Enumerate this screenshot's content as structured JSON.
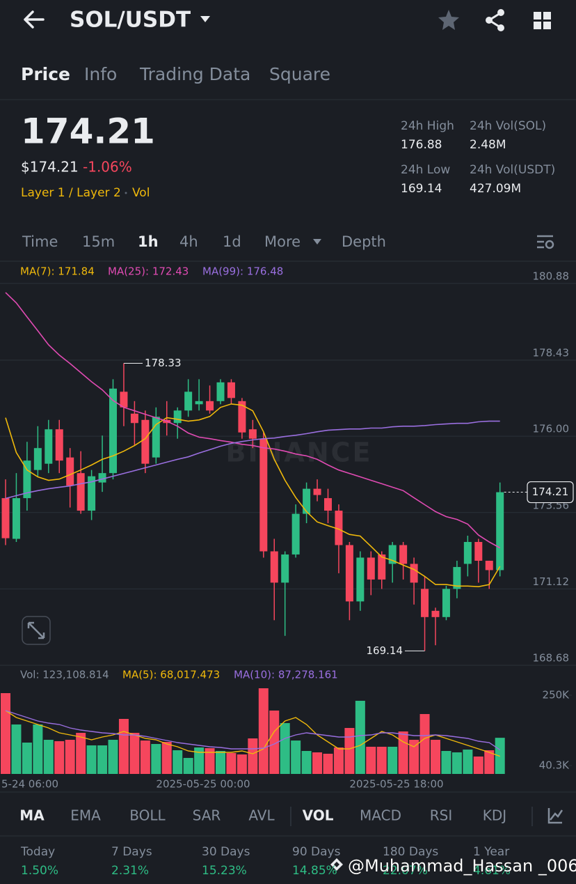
{
  "header": {
    "pair": "SOL/USDT"
  },
  "tabs": [
    "Price",
    "Info",
    "Trading Data",
    "Square"
  ],
  "price": {
    "last": "174.21",
    "fiat": "$174.21",
    "change": "-1.06%",
    "tags": [
      "Layer 1 / Layer 2",
      "Vol"
    ]
  },
  "stats": [
    {
      "label": "24h High",
      "value": "176.88"
    },
    {
      "label": "24h Vol(SOL)",
      "value": "2.48M"
    },
    {
      "label": "24h Low",
      "value": "169.14"
    },
    {
      "label": "24h Vol(USDT)",
      "value": "427.09M"
    }
  ],
  "intervals": [
    "Time",
    "15m",
    "1h",
    "4h",
    "1d",
    "More",
    "Depth"
  ],
  "chart_data": {
    "type": "candlestick",
    "watermark": "BINANCE",
    "ylim": [
      168.68,
      181.59
    ],
    "yticks": [
      168.68,
      171.12,
      173.56,
      {
        "value": 176,
        "label": "176.00"
      },
      178.43,
      180.88
    ],
    "up_color": "#2ebd85",
    "down_color": "#f6465d",
    "candles": [
      {
        "open": 174.02,
        "high": 174.62,
        "low": 172.52,
        "close": 172.74
      },
      {
        "open": 172.72,
        "high": 174.82,
        "low": 172.62,
        "close": 174.02
      },
      {
        "open": 174.02,
        "high": 175.82,
        "low": 173.62,
        "close": 175.22
      },
      {
        "open": 174.92,
        "high": 176.32,
        "low": 174.72,
        "close": 175.62
      },
      {
        "open": 175.12,
        "high": 176.52,
        "low": 174.82,
        "close": 176.22
      },
      {
        "open": 176.22,
        "high": 176.52,
        "low": 174.82,
        "close": 175.22
      },
      {
        "open": 175.32,
        "high": 175.62,
        "low": 173.72,
        "close": 174.42
      },
      {
        "open": 174.82,
        "high": 175.52,
        "low": 173.52,
        "close": 173.62
      },
      {
        "open": 173.62,
        "high": 174.92,
        "low": 173.32,
        "close": 174.72
      },
      {
        "open": 174.52,
        "high": 176.02,
        "low": 174.22,
        "close": 174.82
      },
      {
        "open": 174.82,
        "high": 177.82,
        "low": 174.62,
        "close": 177.52
      },
      {
        "open": 177.42,
        "high": 178.33,
        "low": 176.32,
        "close": 176.92
      },
      {
        "open": 176.72,
        "high": 177.12,
        "low": 175.72,
        "close": 176.42
      },
      {
        "open": 176.52,
        "high": 176.82,
        "low": 174.82,
        "close": 175.12
      },
      {
        "open": 175.32,
        "high": 176.92,
        "low": 175.12,
        "close": 176.62
      },
      {
        "open": 176.52,
        "high": 177.12,
        "low": 176.02,
        "close": 176.42
      },
      {
        "open": 176.42,
        "high": 176.92,
        "low": 175.92,
        "close": 176.82
      },
      {
        "open": 176.82,
        "high": 177.82,
        "low": 176.62,
        "close": 177.42
      },
      {
        "open": 177.02,
        "high": 177.82,
        "low": 176.82,
        "close": 177.12
      },
      {
        "open": 177.12,
        "high": 177.62,
        "low": 176.72,
        "close": 176.82
      },
      {
        "open": 177.12,
        "high": 177.82,
        "low": 177.02,
        "close": 177.72
      },
      {
        "open": 177.72,
        "high": 177.82,
        "low": 177.02,
        "close": 177.22
      },
      {
        "open": 177.12,
        "high": 177.22,
        "low": 175.92,
        "close": 176.12
      },
      {
        "open": 176.22,
        "high": 176.52,
        "low": 175.62,
        "close": 175.92
      },
      {
        "open": 175.92,
        "high": 176.12,
        "low": 172.12,
        "close": 172.32
      },
      {
        "open": 172.32,
        "high": 172.72,
        "low": 170.12,
        "close": 171.32
      },
      {
        "open": 171.32,
        "high": 172.32,
        "low": 169.62,
        "close": 172.22
      },
      {
        "open": 172.22,
        "high": 173.82,
        "low": 172.12,
        "close": 173.52
      },
      {
        "open": 173.52,
        "high": 174.52,
        "low": 173.22,
        "close": 174.32
      },
      {
        "open": 174.32,
        "high": 174.62,
        "low": 173.92,
        "close": 174.12
      },
      {
        "open": 174.02,
        "high": 174.32,
        "low": 173.22,
        "close": 173.62
      },
      {
        "open": 173.62,
        "high": 173.82,
        "low": 171.62,
        "close": 172.52
      },
      {
        "open": 172.52,
        "high": 172.62,
        "low": 170.12,
        "close": 170.72
      },
      {
        "open": 170.72,
        "high": 172.32,
        "low": 170.42,
        "close": 172.12
      },
      {
        "open": 172.12,
        "high": 172.32,
        "low": 170.92,
        "close": 171.42
      },
      {
        "open": 172.22,
        "high": 172.32,
        "low": 171.12,
        "close": 171.42
      },
      {
        "open": 171.92,
        "high": 172.62,
        "low": 171.32,
        "close": 172.52
      },
      {
        "open": 172.52,
        "high": 172.62,
        "low": 171.42,
        "close": 171.92
      },
      {
        "open": 171.92,
        "high": 172.12,
        "low": 170.62,
        "close": 171.32
      },
      {
        "open": 171.12,
        "high": 171.52,
        "low": 169.14,
        "close": 170.22
      },
      {
        "open": 170.42,
        "high": 170.52,
        "low": 169.32,
        "close": 170.22
      },
      {
        "open": 170.22,
        "high": 171.22,
        "low": 170.12,
        "close": 171.12
      },
      {
        "open": 171.12,
        "high": 172.02,
        "low": 170.82,
        "close": 171.82
      },
      {
        "open": 171.92,
        "high": 172.82,
        "low": 171.52,
        "close": 172.62
      },
      {
        "open": 172.62,
        "high": 172.72,
        "low": 171.32,
        "close": 172.02
      },
      {
        "open": 172.02,
        "high": 172.02,
        "low": 171.12,
        "close": 171.72
      },
      {
        "open": 171.72,
        "high": 174.52,
        "low": 171.52,
        "close": 174.21
      }
    ],
    "ma_lines": [
      {
        "label": "MA(7): 171.84",
        "color": "#f0b90b",
        "values": [
          176.59,
          175.48,
          174.92,
          174.7,
          174.59,
          174.63,
          174.77,
          174.92,
          175.08,
          175.26,
          175.37,
          175.52,
          175.7,
          175.92,
          176.37,
          176.59,
          176.54,
          176.48,
          176.52,
          176.63,
          176.92,
          177.03,
          176.99,
          176.81,
          176.14,
          175.26,
          174.59,
          174.04,
          173.59,
          173.26,
          173.14,
          173.03,
          172.86,
          172.81,
          172.48,
          172.14,
          172.03,
          171.88,
          171.74,
          171.52,
          171.26,
          171.26,
          171.21,
          171.21,
          171.19,
          171.26,
          171.84
        ]
      },
      {
        "label": "MA(25): 172.43",
        "color": "#e04bb3",
        "values": [
          180.59,
          180.26,
          179.81,
          179.37,
          178.92,
          178.59,
          178.32,
          178.03,
          177.74,
          177.48,
          177.14,
          176.92,
          176.81,
          176.7,
          176.59,
          176.48,
          176.32,
          176.1,
          175.97,
          175.92,
          175.86,
          175.81,
          175.74,
          175.7,
          175.63,
          175.59,
          175.52,
          175.43,
          175.37,
          175.26,
          175.08,
          174.92,
          174.81,
          174.7,
          174.59,
          174.48,
          174.37,
          174.26,
          174.03,
          173.81,
          173.59,
          173.43,
          173.34,
          173.19,
          172.84,
          172.62,
          172.43
        ]
      },
      {
        "label": "MA(99): 176.48",
        "color": "#9a6fe0",
        "values": [
          174.01,
          174.1,
          174.19,
          174.26,
          174.32,
          174.37,
          174.41,
          174.48,
          174.54,
          174.63,
          174.72,
          174.81,
          174.9,
          174.99,
          175.08,
          175.17,
          175.26,
          175.34,
          175.46,
          175.57,
          175.68,
          175.77,
          175.83,
          175.88,
          175.92,
          175.94,
          175.99,
          176.03,
          176.08,
          176.14,
          176.19,
          176.21,
          176.23,
          176.23,
          176.26,
          176.26,
          176.3,
          176.32,
          176.32,
          176.34,
          176.37,
          176.39,
          176.41,
          176.41,
          176.46,
          176.48,
          176.48
        ]
      }
    ],
    "volume": {
      "legend": [
        "Vol: 123,108.814",
        "MA(5): 68,017.473",
        "MA(10): 87,278.161"
      ],
      "ylim": [
        15400,
        335100
      ],
      "yticks": [
        {
          "value": 40300,
          "label": "40.3K"
        },
        {
          "value": 250000,
          "label": "250K"
        }
      ],
      "values": [
        256200,
        162800,
        108800,
        162800,
        117100,
        113000,
        117100,
        137900,
        100500,
        100500,
        117100,
        179400,
        137900,
        115000,
        104700,
        110900,
        86000,
        63100,
        94300,
        92200,
        83900,
        77700,
        73500,
        121300,
        270700,
        204300,
        166900,
        115000,
        83900,
        79700,
        75600,
        94300,
        152400,
        233400,
        96400,
        96400,
        96400,
        142000,
        117100,
        193900,
        117100,
        83900,
        79700,
        88000,
        67300,
        86000,
        123108.814
      ],
      "ma_lines": [
        {
          "color": "#f0b90b",
          "values": [
            204300,
            183500,
            173200,
            162800,
            152400,
            137900,
            131600,
            125400,
            117100,
            125400,
            131600,
            142000,
            131600,
            121300,
            117100,
            104700,
            96400,
            83900,
            79700,
            79700,
            79700,
            79700,
            83900,
            75600,
            90100,
            142000,
            173200,
            183500,
            162800,
            131600,
            110900,
            90100,
            90100,
            100500,
            121300,
            142000,
            131600,
            110900,
            96400,
            121300,
            131600,
            121300,
            110900,
            100500,
            90100,
            79700,
            68017.473
          ]
        },
        {
          "color": "#9a6fe0",
          "values": [
            204300,
            193900,
            183500,
            173200,
            166900,
            162800,
            152400,
            146200,
            142000,
            137900,
            135800,
            131600,
            131600,
            127500,
            121300,
            115000,
            108800,
            104700,
            100500,
            96400,
            94300,
            90100,
            90100,
            90100,
            92200,
            104700,
            121300,
            131600,
            137900,
            133700,
            129600,
            125400,
            125400,
            129600,
            131600,
            137900,
            137900,
            133700,
            129600,
            129600,
            131600,
            129600,
            125400,
            121300,
            113000,
            108800,
            87278.161
          ]
        }
      ]
    },
    "x_labels": [
      "5-24 06:00",
      "2025-05-25 00:00",
      "2025-05-25 18:00"
    ]
  },
  "indicators": [
    "MA",
    "EMA",
    "BOLL",
    "SAR",
    "AVL",
    "VOL",
    "MACD",
    "RSI",
    "KDJ"
  ],
  "returns": [
    {
      "label": "Today",
      "value": "1.50%"
    },
    {
      "label": "7 Days",
      "value": "2.31%"
    },
    {
      "label": "30 Days",
      "value": "15.23%"
    },
    {
      "label": "90 Days",
      "value": "14.85%"
    },
    {
      "label": "180 Days",
      "value": "22.07%"
    },
    {
      "label": "1 Year",
      "value": "4.61%"
    }
  ],
  "watermark": "@Muhammad_Hassan _006"
}
